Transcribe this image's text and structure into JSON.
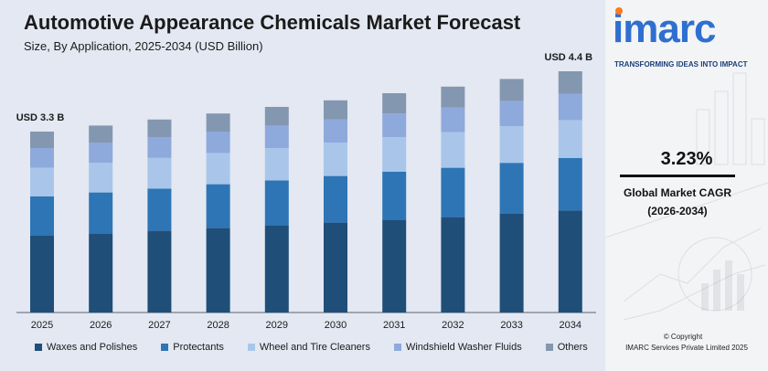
{
  "title": "Automotive Appearance Chemicals Market Forecast",
  "subtitle": "Size, By Application, 2025-2034 (USD Billion)",
  "chart_data": {
    "type": "bar",
    "stacked": true,
    "categories": [
      "2025",
      "2026",
      "2027",
      "2028",
      "2029",
      "2030",
      "2031",
      "2032",
      "2033",
      "2034"
    ],
    "totals": [
      3.3,
      3.41,
      3.52,
      3.63,
      3.75,
      3.87,
      4.0,
      4.12,
      4.26,
      4.4
    ],
    "series": [
      {
        "name": "Waxes and Polishes",
        "color": "#1f4e79",
        "values": [
          1.4,
          1.44,
          1.49,
          1.54,
          1.59,
          1.64,
          1.69,
          1.74,
          1.8,
          1.86
        ]
      },
      {
        "name": "Protectants",
        "color": "#2e75b6",
        "values": [
          0.72,
          0.75,
          0.77,
          0.8,
          0.82,
          0.85,
          0.88,
          0.9,
          0.93,
          0.96
        ]
      },
      {
        "name": "Wheel and Tire Cleaners",
        "color": "#a9c6ea",
        "values": [
          0.52,
          0.54,
          0.56,
          0.57,
          0.59,
          0.61,
          0.63,
          0.65,
          0.67,
          0.69
        ]
      },
      {
        "name": "Windshield Washer Fluids",
        "color": "#8ea9db",
        "values": [
          0.36,
          0.37,
          0.38,
          0.39,
          0.41,
          0.42,
          0.43,
          0.45,
          0.46,
          0.48
        ]
      },
      {
        "name": "Others",
        "color": "#8497b0",
        "values": [
          0.3,
          0.31,
          0.32,
          0.33,
          0.34,
          0.35,
          0.37,
          0.38,
          0.4,
          0.41
        ]
      }
    ],
    "data_labels": [
      {
        "category": "2025",
        "text": "USD 3.3 B"
      },
      {
        "category": "2034",
        "text": "USD 4.4 B"
      }
    ],
    "ylim": [
      0,
      4.4
    ],
    "grid": false,
    "legend_position": "bottom"
  },
  "brand": {
    "logo": "imarc",
    "tagline": "TRANSFORMING IDEAS INTO IMPACT"
  },
  "cagr": {
    "value": "3.23%",
    "label": "Global Market CAGR",
    "period": "(2026-2034)"
  },
  "footer": {
    "copyright": "© Copyright",
    "company": "IMARC Services Private Limited 2025"
  }
}
